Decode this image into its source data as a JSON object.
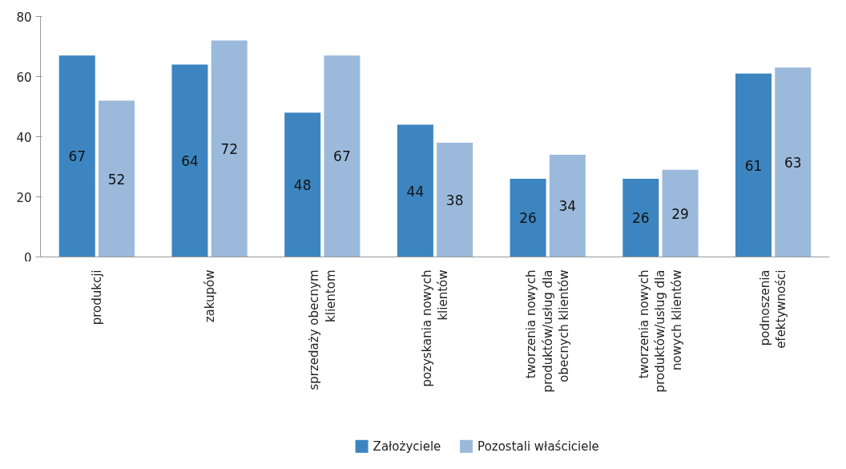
{
  "chart_data": {
    "type": "bar",
    "categories": [
      "produkcji",
      "zakupów",
      "sprzedaży obecnym\nklientom",
      "pozyskania nowych\nklientów",
      "tworzenia nowych\nproduktów/usług dla\nobecnych klientów",
      "tworzenia nowych\nproduktów/usług dla\nnowych klientów",
      "podnoszenia\nefektywności"
    ],
    "series": [
      {
        "name": "Założyciele",
        "color": "#3d85c0",
        "values": [
          67,
          64,
          48,
          44,
          26,
          26,
          61
        ]
      },
      {
        "name": "Pozostali właściciele",
        "color": "#9bbadb",
        "values": [
          52,
          72,
          67,
          38,
          34,
          29,
          63
        ]
      }
    ],
    "ylim": [
      0,
      80
    ],
    "yticks": [
      0,
      20,
      40,
      60,
      80
    ],
    "grid": false,
    "legend": "bottom",
    "data_labels": true
  }
}
